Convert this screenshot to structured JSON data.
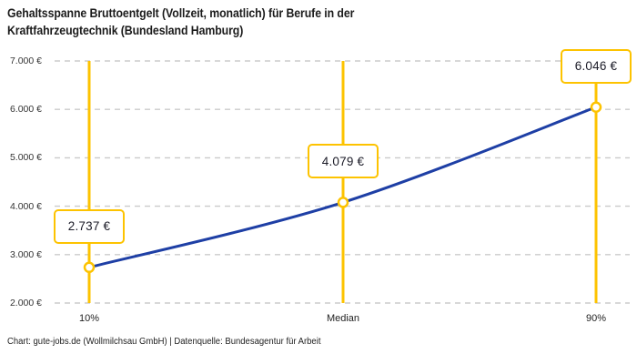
{
  "title_lines": [
    "Gehaltsspanne Bruttoentgelt (Vollzeit, monatlich) für Berufe in der",
    "Kraftfahrzeugtechnik (Bundesland Hamburg)"
  ],
  "footer": {
    "credit": "Chart: gute-jobs.de (Wollmilchsau GmbH) | Datenquelle: Bundesagentur für Arbeit"
  },
  "chart_data": {
    "type": "line",
    "title": "Gehaltsspanne Bruttoentgelt (Vollzeit, monatlich) für Berufe in der Kraftfahrzeugtechnik (Bundesland Hamburg)",
    "categories": [
      "10%",
      "Median",
      "90%"
    ],
    "values": [
      2737,
      4079,
      6046
    ],
    "value_labels": [
      "2.737 €",
      "4.079 €",
      "6.046 €"
    ],
    "xlabel": "",
    "ylabel": "",
    "ylim": [
      2000,
      7000
    ],
    "y_ticks": [
      2000,
      3000,
      4000,
      5000,
      6000,
      7000
    ],
    "y_tick_labels": [
      "2.000 €",
      "3.000 €",
      "4.000 €",
      "5.000 €",
      "6.000 €",
      "7.000 €"
    ],
    "grid": "horizontal-dashed",
    "legend": "none",
    "colors": {
      "curve": "#1E3FA5",
      "percentile_line": "#FDC300",
      "marker_stroke": "#FDC300",
      "marker_fill": "#FFFFFF",
      "gridline": "#CBCBCB",
      "callout_border": "#FDC300",
      "callout_text": "#1C1C28",
      "axis_text": "#333333",
      "title_text": "#1B1B1B"
    }
  }
}
